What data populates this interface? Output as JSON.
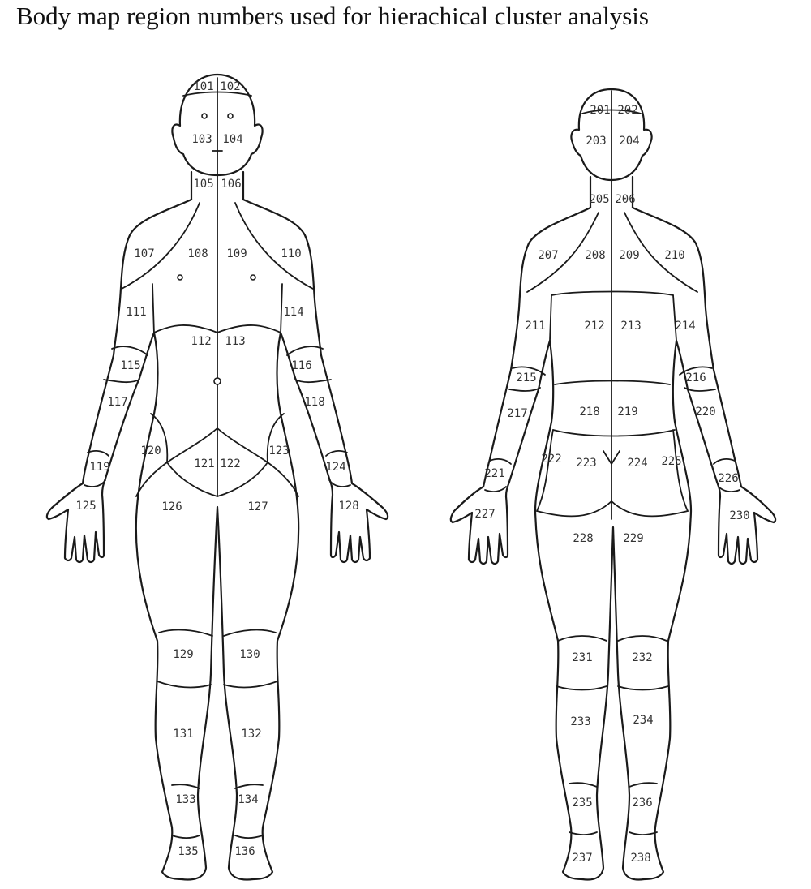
{
  "title": "Body map region numbers used for hierachical cluster analysis",
  "front": {
    "r101": "101",
    "r102": "102",
    "r103": "103",
    "r104": "104",
    "r105": "105",
    "r106": "106",
    "r107": "107",
    "r108": "108",
    "r109": "109",
    "r110": "110",
    "r111": "111",
    "r112": "112",
    "r113": "113",
    "r114": "114",
    "r115": "115",
    "r116": "116",
    "r117": "117",
    "r118": "118",
    "r119": "119",
    "r120": "120",
    "r121": "121",
    "r122": "122",
    "r123": "123",
    "r124": "124",
    "r125": "125",
    "r126": "126",
    "r127": "127",
    "r128": "128",
    "r129": "129",
    "r130": "130",
    "r131": "131",
    "r132": "132",
    "r133": "133",
    "r134": "134",
    "r135": "135",
    "r136": "136"
  },
  "back": {
    "r201": "201",
    "r202": "202",
    "r203": "203",
    "r204": "204",
    "r205": "205",
    "r206": "206",
    "r207": "207",
    "r208": "208",
    "r209": "209",
    "r210": "210",
    "r211": "211",
    "r212": "212",
    "r213": "213",
    "r214": "214",
    "r215": "215",
    "r216": "216",
    "r217": "217",
    "r218": "218",
    "r219": "219",
    "r220": "220",
    "r221": "221",
    "r222": "222",
    "r223": "223",
    "r224": "224",
    "r225": "225",
    "r226": "226",
    "r227": "227",
    "r228": "228",
    "r229": "229",
    "r230": "230",
    "r231": "231",
    "r232": "232",
    "r233": "233",
    "r234": "234",
    "r235": "235",
    "r236": "236",
    "r237": "237",
    "r238": "238"
  }
}
